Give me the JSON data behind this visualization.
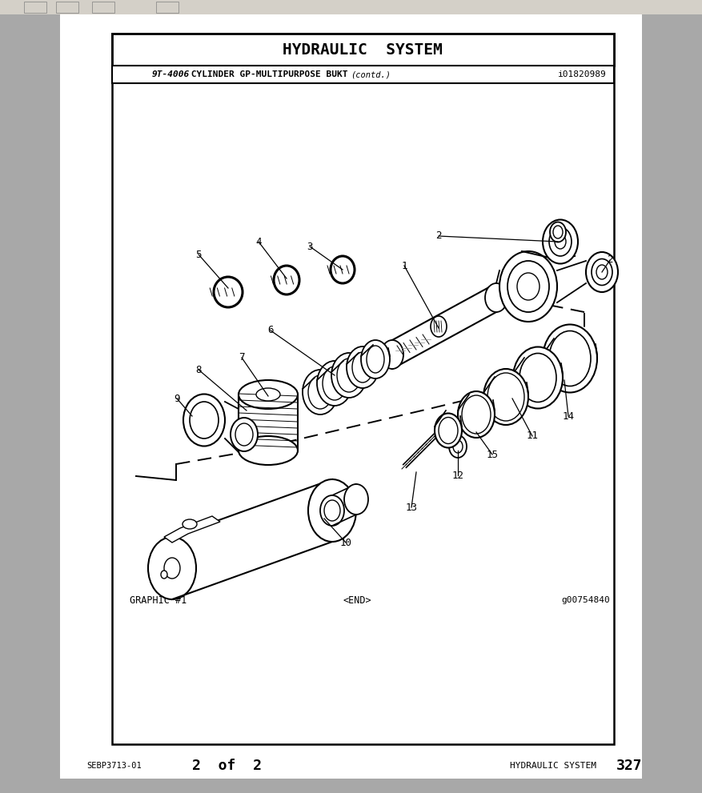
{
  "title": "HYDRAULIC  SYSTEM",
  "subtitle_part": "9T-4006",
  "subtitle_desc": " CYLINDER GP-MULTIPURPOSE BUKT",
  "subtitle_contd": "(contd.)",
  "subtitle_code": "i01820989",
  "footer_left": "SEBP3713-01",
  "footer_center": "2  of  2",
  "footer_right": "HYDRAULIC SYSTEM",
  "footer_page": "327",
  "graphic_label": "GRAPHIC #1",
  "end_label": "<END>",
  "graphic_code": "g00754840",
  "bg_color": "#a8a8a8",
  "page_bg": "#ffffff",
  "border_color": "#000000",
  "toolbar_bg": "#d4d0c8",
  "fig_w": 8.77,
  "fig_h": 9.91,
  "dpi": 100
}
